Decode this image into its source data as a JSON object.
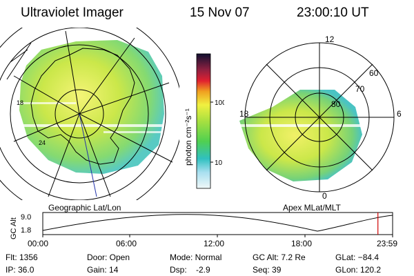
{
  "header": {
    "instrument": "Ultraviolet Imager",
    "date": "15 Nov 07",
    "time": "23:00:10 UT"
  },
  "left_map": {
    "caption": "Geographic Lat/Lon",
    "edge_labels": [
      "18",
      "24"
    ]
  },
  "colorbar": {
    "unit_label": "photon cm⁻²s⁻¹",
    "ticks": [
      "100",
      "10"
    ]
  },
  "right_map": {
    "caption": "Apex MLat/MLT",
    "mlt_labels": [
      "12",
      "6",
      "18",
      "0"
    ],
    "mlat_labels": [
      "60",
      "70",
      "80"
    ]
  },
  "altitude_plot": {
    "ylabel": "GC Alt",
    "y_ticks": [
      "9.0",
      "1.8"
    ],
    "x_ticks": [
      "00:00",
      "06:00",
      "12:00",
      "18:00",
      "23:59"
    ],
    "current_time_fraction": 0.958
  },
  "footer": {
    "flt": "Flt: 1356",
    "ip": "IP: 36.0",
    "door": "Door: Open",
    "gain": "Gain: 14",
    "mode": "Mode: Normal",
    "dsp": "Dsp:    -2.9",
    "gc_alt": "GC Alt: 7.2 Re",
    "seq": "Seq: 39",
    "glat": "GLat: −84.4",
    "glon": "GLon: 120.2"
  },
  "colors": {
    "marker": "#d00000",
    "coastline": "#000000",
    "meridian": "#2233aa"
  }
}
